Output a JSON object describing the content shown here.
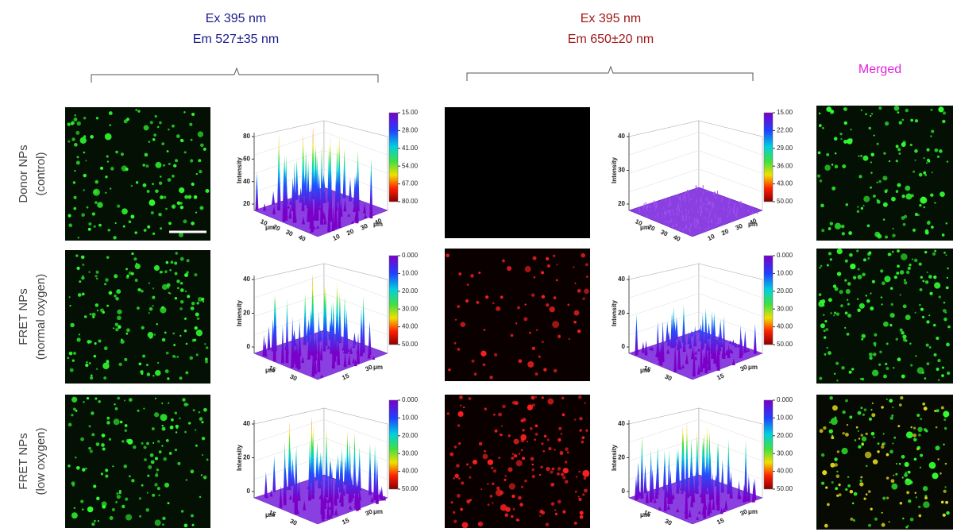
{
  "columns": [
    {
      "lines": [
        "Ex 395 nm",
        "Em 527±35 nm"
      ],
      "color": "#1a1a8c"
    },
    {
      "lines": [
        "Ex 395 nm",
        "Em 650±20 nm"
      ],
      "color": "#a01818"
    },
    {
      "lines": [
        "Merged"
      ],
      "color": "#e020e0"
    }
  ],
  "rows": [
    {
      "lines": [
        "Donor NPs",
        "(control)"
      ]
    },
    {
      "lines": [
        "FRET NPs",
        "(normal oxygen)"
      ]
    },
    {
      "lines": [
        "FRET NPs",
        "(low oxygen)"
      ]
    }
  ],
  "plots": [
    {
      "z_label": "Intensity",
      "z_ticks": [
        "80",
        "60",
        "40",
        "20"
      ],
      "colorbar": [
        "15.00",
        "28.00",
        "41.00",
        "54.00",
        "67.00",
        "80.00"
      ],
      "floor_ticks": [
        "10",
        "20",
        "30",
        "40"
      ],
      "floor_unit": "μm"
    },
    {
      "z_label": "Intensity",
      "z_ticks": [
        "40",
        "30",
        "20"
      ],
      "colorbar": [
        "15.00",
        "22.00",
        "29.00",
        "36.00",
        "43.00",
        "50.00"
      ],
      "floor_ticks": [
        "10",
        "20",
        "30",
        "40"
      ],
      "floor_unit": "μm"
    },
    {
      "z_label": "Intensity",
      "z_ticks": [
        "40",
        "20",
        "0"
      ],
      "colorbar": [
        "0.000",
        "10.00",
        "20.00",
        "30.00",
        "40.00",
        "50.00"
      ],
      "floor_ticks": [
        "15",
        "30"
      ],
      "floor_unit": "μm"
    },
    {
      "z_label": "Intensity",
      "z_ticks": [
        "40",
        "20",
        "0"
      ],
      "colorbar": [
        "0.000",
        "10.00",
        "20.00",
        "30.00",
        "40.00",
        "50.00"
      ],
      "floor_ticks": [
        "15",
        "30"
      ],
      "floor_unit": "μm"
    },
    {
      "z_label": "Intensity",
      "z_ticks": [
        "40",
        "20",
        "0"
      ],
      "colorbar": [
        "0.000",
        "10.00",
        "20.00",
        "30.00",
        "40.00",
        "50.00"
      ],
      "floor_ticks": [
        "15",
        "30"
      ],
      "floor_unit": "μm"
    },
    {
      "z_label": "Intensity",
      "z_ticks": [
        "40",
        "20",
        "0"
      ],
      "colorbar": [
        "0.000",
        "10.00",
        "20.00",
        "30.00",
        "40.00",
        "50.00"
      ],
      "floor_ticks": [
        "15",
        "30"
      ],
      "floor_unit": "μm"
    }
  ]
}
